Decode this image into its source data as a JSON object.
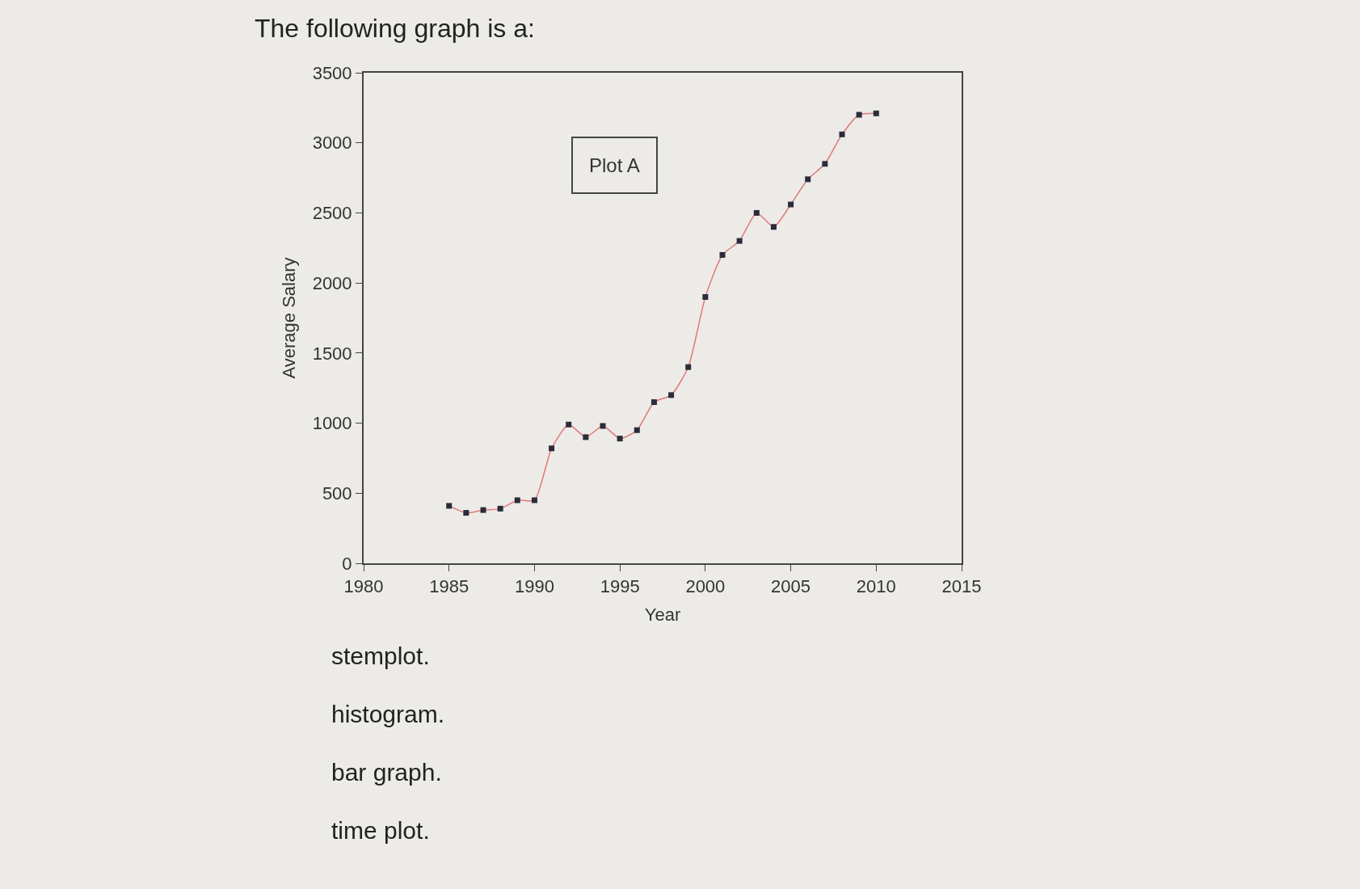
{
  "chart_data": {
    "type": "line",
    "title": "The following graph is a:",
    "xlabel": "Year",
    "ylabel": "Average Salary",
    "x": [
      1985,
      1986,
      1987,
      1988,
      1989,
      1990,
      1991,
      1992,
      1993,
      1994,
      1995,
      1996,
      1997,
      1998,
      1999,
      2000,
      2001,
      2002,
      2003,
      2004,
      2005,
      2006,
      2007,
      2008,
      2009,
      2010
    ],
    "series": [
      {
        "color": "#e07a7a",
        "colors": [
          "#2b2b3a",
          "#2b2b3a",
          "#2b2b3a",
          "#2b2b3a",
          "#2b2b3a",
          "#2b2b3a",
          "#2b2b3a",
          "#2b2b3a",
          "#2b2b3a",
          "#2b2b3a",
          "#2b2b3a",
          "#2b2b3a",
          "#2b2b3a",
          "#2b2b3a",
          "#2b2b3a",
          "#2b2b3a",
          "#2b2b3a",
          "#2b2b3a",
          "#2b2b3a",
          "#2b2b3a",
          "#2b2b3a",
          "#2b2b3a",
          "#2b2b3a",
          "#2b2b3a",
          "#2b2b3a",
          "#2b2b3a"
        ],
        "values": [
          410,
          360,
          380,
          390,
          450,
          450,
          820,
          990,
          900,
          980,
          890,
          950,
          1150,
          1200,
          1400,
          1900,
          2200,
          2300,
          2500,
          2400,
          2560,
          2740,
          2850,
          3060,
          3200,
          3210
        ]
      }
    ],
    "xlim": [
      1980,
      2015
    ],
    "xticks": [
      1980,
      1985,
      1990,
      1995,
      2000,
      2005,
      2010,
      2015
    ],
    "ylim": [
      0,
      3500
    ],
    "yticks": [
      0,
      500,
      1000,
      1500,
      2000,
      2500,
      3000,
      3500
    ],
    "grid": false,
    "marker": "square",
    "line_style": "solid",
    "annotations": [
      "Plot A",
      "stemplot.",
      "histogram.",
      "bar graph.",
      "time plot."
    ]
  }
}
